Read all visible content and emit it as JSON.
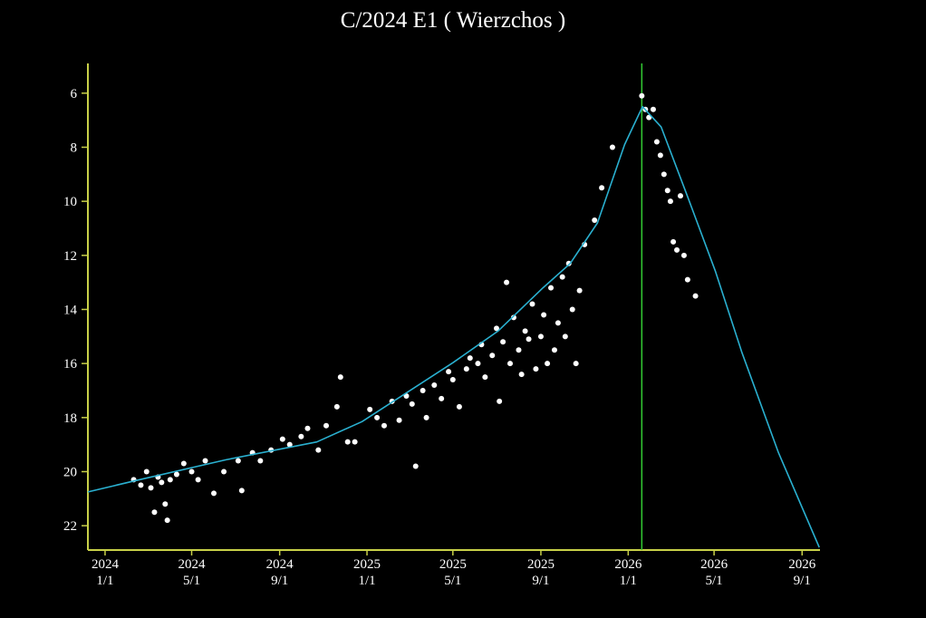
{
  "chart_data": {
    "type": "scatter",
    "title": "C/2024 E1 ( Wierzchos )",
    "xlim": [
      "2023-12-08",
      "2026-09-26"
    ],
    "xticks": [
      {
        "value": "2024-01-01",
        "label": "2024 1/1"
      },
      {
        "value": "2024-05-01",
        "label": "2024 5/1"
      },
      {
        "value": "2024-09-01",
        "label": "2024 9/1"
      },
      {
        "value": "2025-01-01",
        "label": "2025 1/1"
      },
      {
        "value": "2025-05-01",
        "label": "2025 5/1"
      },
      {
        "value": "2025-09-01",
        "label": "2025 9/1"
      },
      {
        "value": "2026-01-01",
        "label": "2026 1/1"
      },
      {
        "value": "2026-05-01",
        "label": "2026 5/1"
      },
      {
        "value": "2026-09-01",
        "label": "2026 9/1"
      }
    ],
    "ylim": [
      22.9,
      4.9
    ],
    "yticks": [
      6,
      8,
      10,
      12,
      14,
      16,
      18,
      20,
      22
    ],
    "axis_color": "#c8d048",
    "vline": {
      "x": "2026-01-20",
      "color": "#33cc33"
    },
    "series": [
      {
        "type": "scatter",
        "color": "#ffffff",
        "x": [
          "2024-02-10",
          "2024-02-20",
          "2024-02-28",
          "2024-03-05",
          "2024-03-10",
          "2024-03-15",
          "2024-03-20",
          "2024-03-25",
          "2024-03-28",
          "2024-04-01",
          "2024-04-10",
          "2024-04-20",
          "2024-05-01",
          "2024-05-10",
          "2024-05-20",
          "2024-06-01",
          "2024-06-15",
          "2024-07-05",
          "2024-07-10",
          "2024-07-25",
          "2024-08-05",
          "2024-08-20",
          "2024-09-05",
          "2024-09-15",
          "2024-10-01",
          "2024-10-10",
          "2024-10-25",
          "2024-11-05",
          "2024-11-20",
          "2024-11-25",
          "2024-12-05",
          "2024-12-15",
          "2025-01-05",
          "2025-01-15",
          "2025-01-25",
          "2025-02-05",
          "2025-02-15",
          "2025-02-25",
          "2025-03-05",
          "2025-03-10",
          "2025-03-20",
          "2025-03-25",
          "2025-04-05",
          "2025-04-15",
          "2025-04-25",
          "2025-05-01",
          "2025-05-10",
          "2025-05-20",
          "2025-05-25",
          "2025-06-05",
          "2025-06-10",
          "2025-06-15",
          "2025-06-25",
          "2025-07-01",
          "2025-07-05",
          "2025-07-10",
          "2025-07-15",
          "2025-07-20",
          "2025-07-25",
          "2025-08-01",
          "2025-08-05",
          "2025-08-10",
          "2025-08-15",
          "2025-08-20",
          "2025-08-25",
          "2025-09-01",
          "2025-09-05",
          "2025-09-10",
          "2025-09-15",
          "2025-09-20",
          "2025-09-25",
          "2025-10-01",
          "2025-10-05",
          "2025-10-10",
          "2025-10-15",
          "2025-10-20",
          "2025-10-25",
          "2025-11-01",
          "2025-11-15",
          "2025-11-25",
          "2025-12-10",
          "2026-01-20",
          "2026-01-25",
          "2026-01-30",
          "2026-02-05",
          "2026-02-10",
          "2026-02-15",
          "2026-02-20",
          "2026-02-25",
          "2026-03-01",
          "2026-03-05",
          "2026-03-10",
          "2026-03-15",
          "2026-03-20",
          "2026-03-25",
          "2026-04-05"
        ],
        "values": [
          20.3,
          20.5,
          20.0,
          20.6,
          21.5,
          20.2,
          20.4,
          21.2,
          21.8,
          20.3,
          20.1,
          19.7,
          20.0,
          20.3,
          19.6,
          20.8,
          20.0,
          19.6,
          20.7,
          19.3,
          19.6,
          19.2,
          18.8,
          19.0,
          18.7,
          18.4,
          19.2,
          18.3,
          17.6,
          16.5,
          18.9,
          18.9,
          17.7,
          18.0,
          18.3,
          17.4,
          18.1,
          17.2,
          17.5,
          19.8,
          17.0,
          18.0,
          16.8,
          17.3,
          16.3,
          16.6,
          17.6,
          16.2,
          15.8,
          16.0,
          15.3,
          16.5,
          15.7,
          14.7,
          17.4,
          15.2,
          13.0,
          16.0,
          14.3,
          15.5,
          16.4,
          14.8,
          15.1,
          13.8,
          16.2,
          15.0,
          14.2,
          16.0,
          13.2,
          15.5,
          14.5,
          12.8,
          15.0,
          12.3,
          14.0,
          16.0,
          13.3,
          11.6,
          10.7,
          9.5,
          8.0,
          6.1,
          6.6,
          6.9,
          6.6,
          7.8,
          8.3,
          9.0,
          9.6,
          10.0,
          11.5,
          11.8,
          9.8,
          12.0,
          12.9,
          13.5
        ]
      },
      {
        "type": "line",
        "color": "#2ab0d0",
        "x": [
          "2023-12-08",
          "2024-02-13",
          "2024-06-18",
          "2024-10-23",
          "2024-12-25",
          "2025-02-26",
          "2025-05-01",
          "2025-07-03",
          "2025-09-04",
          "2025-10-12",
          "2025-11-19",
          "2025-12-27",
          "2026-01-21",
          "2026-02-16",
          "2026-03-26",
          "2026-05-03",
          "2026-06-09",
          "2026-07-30",
          "2026-09-25"
        ],
        "values": [
          20.75,
          20.33,
          19.56,
          18.9,
          18.15,
          17.07,
          15.97,
          14.8,
          13.2,
          12.3,
          10.8,
          7.9,
          6.5,
          7.25,
          9.9,
          12.6,
          15.6,
          19.3,
          22.8
        ]
      }
    ]
  }
}
